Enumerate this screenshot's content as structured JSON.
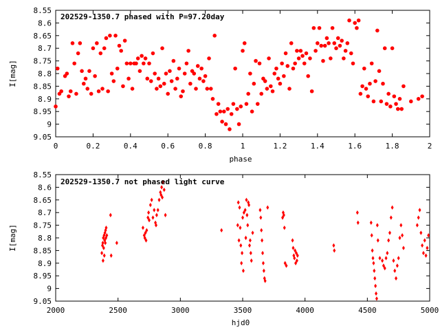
{
  "chart_data": [
    {
      "type": "scatter",
      "title": "202529-1350.7 phased with P=97.20day",
      "xlabel": "phase",
      "ylabel": "I[mag]",
      "xlim": [
        0,
        2
      ],
      "ylim": [
        9.05,
        8.55
      ],
      "y_inverted": true,
      "x_ticks": [
        "0",
        "0.2",
        "0.4",
        "0.6",
        "0.8",
        "1",
        "1.2",
        "1.4",
        "1.6",
        "1.8",
        "2"
      ],
      "y_ticks": [
        "8.55",
        "8.6",
        "8.65",
        "8.7",
        "8.75",
        "8.8",
        "8.85",
        "8.9",
        "8.95",
        "9",
        "9.05"
      ],
      "marker_color": "#ff0000",
      "marker": "filled-circle",
      "grid": false,
      "points": [
        [
          0.0,
          8.93
        ],
        [
          0.01,
          8.78
        ],
        [
          0.02,
          8.88
        ],
        [
          0.03,
          8.87
        ],
        [
          0.05,
          8.81
        ],
        [
          0.06,
          8.8
        ],
        [
          0.07,
          8.89
        ],
        [
          0.08,
          8.87
        ],
        [
          0.09,
          8.68
        ],
        [
          0.1,
          8.76
        ],
        [
          0.11,
          8.88
        ],
        [
          0.12,
          8.72
        ],
        [
          0.13,
          8.68
        ],
        [
          0.14,
          8.79
        ],
        [
          0.15,
          8.84
        ],
        [
          0.16,
          8.82
        ],
        [
          0.17,
          8.86
        ],
        [
          0.18,
          8.79
        ],
        [
          0.19,
          8.88
        ],
        [
          0.2,
          8.7
        ],
        [
          0.21,
          8.81
        ],
        [
          0.22,
          8.68
        ],
        [
          0.23,
          8.87
        ],
        [
          0.24,
          8.72
        ],
        [
          0.25,
          8.86
        ],
        [
          0.26,
          8.7
        ],
        [
          0.27,
          8.66
        ],
        [
          0.28,
          8.87
        ],
        [
          0.29,
          8.65
        ],
        [
          0.3,
          8.8
        ],
        [
          0.31,
          8.83
        ],
        [
          0.32,
          8.65
        ],
        [
          0.33,
          8.78
        ],
        [
          0.34,
          8.69
        ],
        [
          0.35,
          8.71
        ],
        [
          0.36,
          8.85
        ],
        [
          0.37,
          8.67
        ],
        [
          0.38,
          8.76
        ],
        [
          0.39,
          8.82
        ],
        [
          0.4,
          8.76
        ],
        [
          0.41,
          8.86
        ],
        [
          0.42,
          8.76
        ],
        [
          0.43,
          8.76
        ],
        [
          0.44,
          8.74
        ],
        [
          0.45,
          8.79
        ],
        [
          0.46,
          8.73
        ],
        [
          0.47,
          8.76
        ],
        [
          0.48,
          8.74
        ],
        [
          0.49,
          8.82
        ],
        [
          0.5,
          8.76
        ],
        [
          0.51,
          8.83
        ],
        [
          0.52,
          8.72
        ],
        [
          0.53,
          8.8
        ],
        [
          0.54,
          8.86
        ],
        [
          0.55,
          8.82
        ],
        [
          0.56,
          8.85
        ],
        [
          0.57,
          8.7
        ],
        [
          0.58,
          8.84
        ],
        [
          0.59,
          8.8
        ],
        [
          0.6,
          8.88
        ],
        [
          0.61,
          8.79
        ],
        [
          0.62,
          8.83
        ],
        [
          0.63,
          8.75
        ],
        [
          0.64,
          8.86
        ],
        [
          0.65,
          8.82
        ],
        [
          0.66,
          8.78
        ],
        [
          0.67,
          8.89
        ],
        [
          0.68,
          8.87
        ],
        [
          0.69,
          8.8
        ],
        [
          0.7,
          8.76
        ],
        [
          0.71,
          8.71
        ],
        [
          0.72,
          8.84
        ],
        [
          0.73,
          8.79
        ],
        [
          0.74,
          8.8
        ],
        [
          0.75,
          8.86
        ],
        [
          0.76,
          8.77
        ],
        [
          0.77,
          8.82
        ],
        [
          0.78,
          8.78
        ],
        [
          0.79,
          8.83
        ],
        [
          0.8,
          8.81
        ],
        [
          0.81,
          8.86
        ],
        [
          0.82,
          8.74
        ],
        [
          0.83,
          8.86
        ],
        [
          0.84,
          8.9
        ],
        [
          0.85,
          8.65
        ],
        [
          0.86,
          8.96
        ],
        [
          0.87,
          8.92
        ],
        [
          0.88,
          8.95
        ],
        [
          0.89,
          8.99
        ],
        [
          0.9,
          8.95
        ],
        [
          0.91,
          9.0
        ],
        [
          0.92,
          8.94
        ],
        [
          0.93,
          9.02
        ],
        [
          0.94,
          8.96
        ],
        [
          0.95,
          8.92
        ],
        [
          0.96,
          8.78
        ],
        [
          0.97,
          8.94
        ],
        [
          0.98,
          9.0
        ],
        [
          0.99,
          8.93
        ],
        [
          1.0,
          8.71
        ],
        [
          1.01,
          8.68
        ],
        [
          1.02,
          8.92
        ],
        [
          1.03,
          8.88
        ],
        [
          1.04,
          8.8
        ],
        [
          1.05,
          8.95
        ],
        [
          1.06,
          8.84
        ],
        [
          1.07,
          8.75
        ],
        [
          1.08,
          8.92
        ],
        [
          1.09,
          8.76
        ],
        [
          1.1,
          8.88
        ],
        [
          1.11,
          8.82
        ],
        [
          1.12,
          8.83
        ],
        [
          1.13,
          8.86
        ],
        [
          1.14,
          8.74
        ],
        [
          1.15,
          8.85
        ],
        [
          1.16,
          8.87
        ],
        [
          1.17,
          8.8
        ],
        [
          1.18,
          8.78
        ],
        [
          1.19,
          8.82
        ],
        [
          1.2,
          8.84
        ],
        [
          1.21,
          8.76
        ],
        [
          1.22,
          8.81
        ],
        [
          1.23,
          8.72
        ],
        [
          1.24,
          8.77
        ],
        [
          1.25,
          8.86
        ],
        [
          1.26,
          8.68
        ],
        [
          1.27,
          8.78
        ],
        [
          1.28,
          8.76
        ],
        [
          1.29,
          8.71
        ],
        [
          1.3,
          8.74
        ],
        [
          1.31,
          8.71
        ],
        [
          1.32,
          8.73
        ],
        [
          1.33,
          8.76
        ],
        [
          1.34,
          8.72
        ],
        [
          1.35,
          8.81
        ],
        [
          1.36,
          8.74
        ],
        [
          1.37,
          8.87
        ],
        [
          1.38,
          8.62
        ],
        [
          1.39,
          8.71
        ],
        [
          1.4,
          8.68
        ],
        [
          1.41,
          8.62
        ],
        [
          1.42,
          8.69
        ],
        [
          1.43,
          8.75
        ],
        [
          1.44,
          8.69
        ],
        [
          1.45,
          8.66
        ],
        [
          1.46,
          8.68
        ],
        [
          1.47,
          8.74
        ],
        [
          1.48,
          8.62
        ],
        [
          1.49,
          8.68
        ],
        [
          1.5,
          8.7
        ],
        [
          1.51,
          8.66
        ],
        [
          1.52,
          8.69
        ],
        [
          1.53,
          8.67
        ],
        [
          1.54,
          8.74
        ],
        [
          1.55,
          8.71
        ],
        [
          1.56,
          8.68
        ],
        [
          1.57,
          8.59
        ],
        [
          1.58,
          8.72
        ],
        [
          1.59,
          8.76
        ],
        [
          1.6,
          8.6
        ],
        [
          1.61,
          8.62
        ],
        [
          1.62,
          8.59
        ],
        [
          1.63,
          8.88
        ],
        [
          1.64,
          8.85
        ],
        [
          1.65,
          8.78
        ],
        [
          1.66,
          8.86
        ],
        [
          1.67,
          8.89
        ],
        [
          1.68,
          8.84
        ],
        [
          1.69,
          8.76
        ],
        [
          1.7,
          8.91
        ],
        [
          1.71,
          8.83
        ],
        [
          1.72,
          8.63
        ],
        [
          1.73,
          8.79
        ],
        [
          1.74,
          8.91
        ],
        [
          1.75,
          8.84
        ],
        [
          1.76,
          8.7
        ],
        [
          1.77,
          8.92
        ],
        [
          1.78,
          8.88
        ],
        [
          1.79,
          8.93
        ],
        [
          1.8,
          8.7
        ],
        [
          1.81,
          8.89
        ],
        [
          1.82,
          8.92
        ],
        [
          1.83,
          8.94
        ],
        [
          1.84,
          8.9
        ],
        [
          1.85,
          8.94
        ],
        [
          1.86,
          8.85
        ],
        [
          1.9,
          8.91
        ],
        [
          1.94,
          8.9
        ],
        [
          1.96,
          8.89
        ]
      ]
    },
    {
      "type": "scatter",
      "title": "202529-1350.7 not phased light curve",
      "xlabel": "hjd0",
      "ylabel": "I[mag]",
      "xlim": [
        2000,
        5000
      ],
      "ylim": [
        9.05,
        8.55
      ],
      "y_inverted": true,
      "x_ticks": [
        "2000",
        "2500",
        "3000",
        "3500",
        "4000",
        "4500",
        "5000"
      ],
      "y_ticks": [
        "8.55",
        "8.6",
        "8.65",
        "8.7",
        "8.75",
        "8.8",
        "8.85",
        "8.9",
        "8.95",
        "9",
        "9.05"
      ],
      "marker_color": "#ff0000",
      "marker": "filled-diamond",
      "grid": false,
      "points": [
        [
          2370,
          8.86
        ],
        [
          2375,
          8.83
        ],
        [
          2378,
          8.82
        ],
        [
          2380,
          8.89
        ],
        [
          2382,
          8.8
        ],
        [
          2385,
          8.84
        ],
        [
          2388,
          8.79
        ],
        [
          2390,
          8.87
        ],
        [
          2393,
          8.81
        ],
        [
          2395,
          8.78
        ],
        [
          2398,
          8.82
        ],
        [
          2400,
          8.77
        ],
        [
          2403,
          8.8
        ],
        [
          2405,
          8.76
        ],
        [
          2410,
          8.79
        ],
        [
          2440,
          8.71
        ],
        [
          2445,
          8.87
        ],
        [
          2490,
          8.82
        ],
        [
          2700,
          8.76
        ],
        [
          2710,
          8.79
        ],
        [
          2715,
          8.8
        ],
        [
          2720,
          8.78
        ],
        [
          2725,
          8.81
        ],
        [
          2730,
          8.77
        ],
        [
          2740,
          8.72
        ],
        [
          2745,
          8.7
        ],
        [
          2750,
          8.73
        ],
        [
          2760,
          8.67
        ],
        [
          2770,
          8.65
        ],
        [
          2780,
          8.72
        ],
        [
          2790,
          8.69
        ],
        [
          2800,
          8.74
        ],
        [
          2805,
          8.75
        ],
        [
          2810,
          8.71
        ],
        [
          2820,
          8.69
        ],
        [
          2830,
          8.65
        ],
        [
          2840,
          8.62
        ],
        [
          2845,
          8.63
        ],
        [
          2850,
          8.6
        ],
        [
          2855,
          8.64
        ],
        [
          2860,
          8.58
        ],
        [
          2870,
          8.61
        ],
        [
          2880,
          8.71
        ],
        [
          3330,
          8.77
        ],
        [
          3460,
          8.75
        ],
        [
          3465,
          8.66
        ],
        [
          3470,
          8.81
        ],
        [
          3475,
          8.68
        ],
        [
          3480,
          8.76
        ],
        [
          3485,
          8.83
        ],
        [
          3490,
          8.9
        ],
        [
          3495,
          8.86
        ],
        [
          3500,
          8.72
        ],
        [
          3505,
          8.93
        ],
        [
          3510,
          8.7
        ],
        [
          3520,
          8.69
        ],
        [
          3525,
          8.8
        ],
        [
          3530,
          8.65
        ],
        [
          3535,
          8.71
        ],
        [
          3540,
          8.75
        ],
        [
          3545,
          8.66
        ],
        [
          3550,
          8.67
        ],
        [
          3555,
          8.83
        ],
        [
          3560,
          8.81
        ],
        [
          3565,
          8.86
        ],
        [
          3570,
          8.89
        ],
        [
          3580,
          8.78
        ],
        [
          3640,
          8.69
        ],
        [
          3645,
          8.72
        ],
        [
          3650,
          8.77
        ],
        [
          3655,
          8.81
        ],
        [
          3660,
          8.86
        ],
        [
          3665,
          8.9
        ],
        [
          3670,
          8.93
        ],
        [
          3675,
          8.96
        ],
        [
          3680,
          8.97
        ],
        [
          3700,
          8.68
        ],
        [
          3820,
          8.72
        ],
        [
          3825,
          8.7
        ],
        [
          3830,
          8.71
        ],
        [
          3835,
          8.76
        ],
        [
          3840,
          8.9
        ],
        [
          3850,
          8.91
        ],
        [
          3900,
          8.81
        ],
        [
          3905,
          8.84
        ],
        [
          3910,
          8.87
        ],
        [
          3915,
          8.88
        ],
        [
          3920,
          8.85
        ],
        [
          3925,
          8.9
        ],
        [
          3930,
          8.86
        ],
        [
          3935,
          8.89
        ],
        [
          3940,
          8.87
        ],
        [
          4230,
          8.83
        ],
        [
          4235,
          8.85
        ],
        [
          4420,
          8.7
        ],
        [
          4425,
          8.74
        ],
        [
          4530,
          8.74
        ],
        [
          4535,
          8.79
        ],
        [
          4540,
          8.85
        ],
        [
          4545,
          8.88
        ],
        [
          4550,
          8.9
        ],
        [
          4555,
          8.93
        ],
        [
          4560,
          8.96
        ],
        [
          4565,
          8.99
        ],
        [
          4570,
          9.02
        ],
        [
          4575,
          9.04
        ],
        [
          4580,
          8.75
        ],
        [
          4585,
          8.81
        ],
        [
          4600,
          8.88
        ],
        [
          4620,
          8.89
        ],
        [
          4630,
          8.91
        ],
        [
          4640,
          8.92
        ],
        [
          4650,
          8.88
        ],
        [
          4660,
          8.86
        ],
        [
          4670,
          8.81
        ],
        [
          4680,
          8.78
        ],
        [
          4690,
          8.72
        ],
        [
          4700,
          8.68
        ],
        [
          4710,
          8.89
        ],
        [
          4720,
          8.93
        ],
        [
          4730,
          8.96
        ],
        [
          4740,
          8.91
        ],
        [
          4750,
          8.88
        ],
        [
          4760,
          8.8
        ],
        [
          4770,
          8.75
        ],
        [
          4780,
          8.79
        ],
        [
          4790,
          8.84
        ],
        [
          4900,
          8.75
        ],
        [
          4910,
          8.72
        ],
        [
          4920,
          8.69
        ],
        [
          4930,
          8.78
        ],
        [
          4940,
          8.83
        ],
        [
          4950,
          8.86
        ],
        [
          4960,
          8.81
        ],
        [
          4970,
          8.87
        ],
        [
          4980,
          8.84
        ],
        [
          4990,
          8.79
        ]
      ]
    }
  ]
}
